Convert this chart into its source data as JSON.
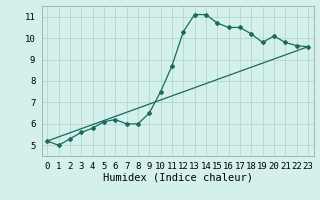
{
  "xlabel": "Humidex (Indice chaleur)",
  "bg_color": "#d4f0ec",
  "grid_color": "#b0d8d0",
  "line_color": "#1a6b5a",
  "xlim": [
    -0.5,
    23.5
  ],
  "ylim": [
    4.5,
    11.5
  ],
  "xticks": [
    0,
    1,
    2,
    3,
    4,
    5,
    6,
    7,
    8,
    9,
    10,
    11,
    12,
    13,
    14,
    15,
    16,
    17,
    18,
    19,
    20,
    21,
    22,
    23
  ],
  "yticks": [
    5,
    6,
    7,
    8,
    9,
    10,
    11
  ],
  "line1_x": [
    0,
    1,
    2,
    3,
    4,
    5,
    6,
    7,
    8,
    9,
    10,
    11,
    12,
    13,
    14,
    15,
    16,
    17,
    18,
    19,
    20,
    21,
    22,
    23
  ],
  "line1_y": [
    5.2,
    5.0,
    5.3,
    5.6,
    5.8,
    6.1,
    6.2,
    6.0,
    6.0,
    6.5,
    7.5,
    8.7,
    10.3,
    11.1,
    11.1,
    10.7,
    10.5,
    10.5,
    10.2,
    9.8,
    10.1,
    9.8,
    9.65,
    9.6
  ],
  "line2_x": [
    0,
    23
  ],
  "line2_y": [
    5.2,
    9.6
  ],
  "tick_fontsize": 6.5,
  "xlabel_fontsize": 7.5
}
